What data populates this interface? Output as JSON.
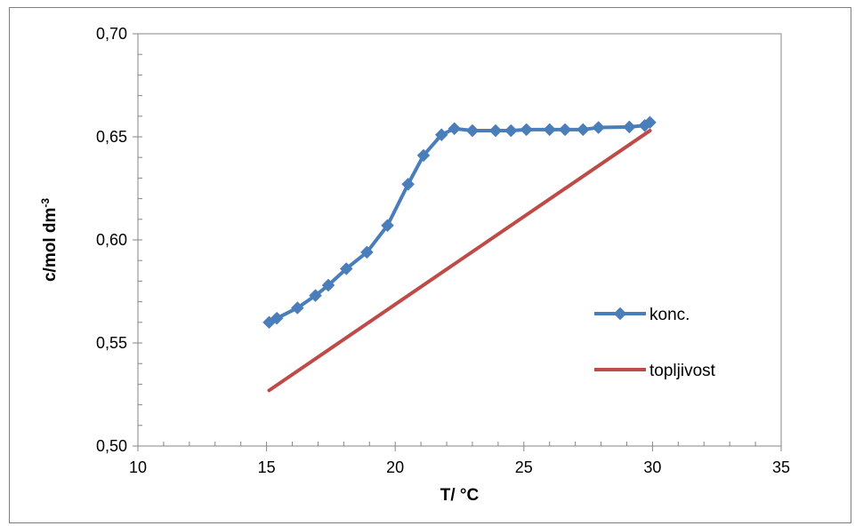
{
  "chart_data": {
    "type": "line",
    "title": "",
    "xlabel": "T/ °C",
    "ylabel": "c/mol dm",
    "ylabel_superscript": "-3",
    "xlim": [
      10,
      35
    ],
    "ylim": [
      0.5,
      0.7
    ],
    "x_ticks": [
      10,
      15,
      20,
      25,
      30,
      35
    ],
    "x_tick_labels": [
      "10",
      "15",
      "20",
      "25",
      "30",
      "35"
    ],
    "y_ticks": [
      0.5,
      0.55,
      0.6,
      0.65,
      0.7
    ],
    "y_tick_labels": [
      "0,50",
      "0,55",
      "0,60",
      "0,65",
      "0,70"
    ],
    "grid": false,
    "legend_position": "right",
    "series": [
      {
        "name": "konc.",
        "color": "#4a7ebb",
        "marker": "diamond",
        "x": [
          15.1,
          15.4,
          16.2,
          16.9,
          17.4,
          18.1,
          18.9,
          19.7,
          20.5,
          21.1,
          21.8,
          22.3,
          23.0,
          23.9,
          24.5,
          25.1,
          26.0,
          26.6,
          27.3,
          27.9,
          29.1,
          29.7,
          29.9
        ],
        "y": [
          0.56,
          0.562,
          0.567,
          0.573,
          0.578,
          0.586,
          0.594,
          0.607,
          0.627,
          0.641,
          0.651,
          0.654,
          0.653,
          0.653,
          0.653,
          0.6535,
          0.6535,
          0.6535,
          0.6535,
          0.6545,
          0.6548,
          0.6555,
          0.657
        ]
      },
      {
        "name": "topljivost",
        "color": "#be4b48",
        "marker": "none",
        "x": [
          15.1,
          29.9
        ],
        "y": [
          0.527,
          0.653
        ]
      }
    ]
  }
}
